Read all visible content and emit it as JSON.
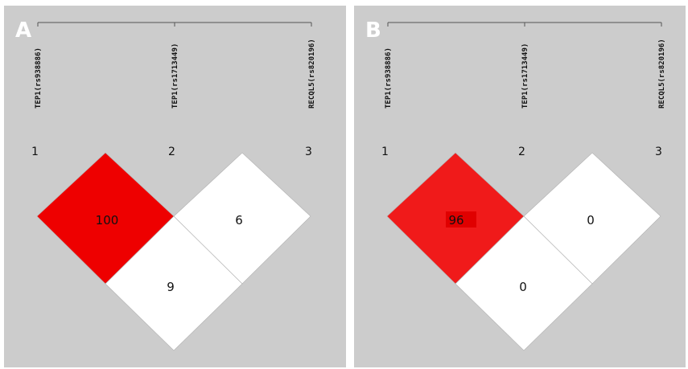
{
  "panels": [
    {
      "letter": "A",
      "snps": [
        "TEP1(rs938886)",
        "TEP1(rs1713449)",
        "RECQL5(rs820196)"
      ],
      "indices": [
        "1",
        "2",
        "3"
      ],
      "cells": [
        {
          "pair": "1-2",
          "value": "100",
          "color": "#ee0000"
        },
        {
          "pair": "2-3",
          "value": "6",
          "color": "#ffffff"
        },
        {
          "pair": "1-3",
          "value": "9",
          "color": "#ffffff"
        }
      ]
    },
    {
      "letter": "B",
      "snps": [
        "TEP1(rs938886)",
        "TEP1(rs1713449)",
        "RECQL5(rs820196)"
      ],
      "indices": [
        "1",
        "2",
        "3"
      ],
      "cells": [
        {
          "pair": "1-2",
          "value": "96",
          "color": "#f01a1a"
        },
        {
          "pair": "2-3",
          "value": "0",
          "color": "#ffffff"
        },
        {
          "pair": "1-3",
          "value": "0",
          "color": "#ffffff"
        }
      ]
    }
  ]
}
